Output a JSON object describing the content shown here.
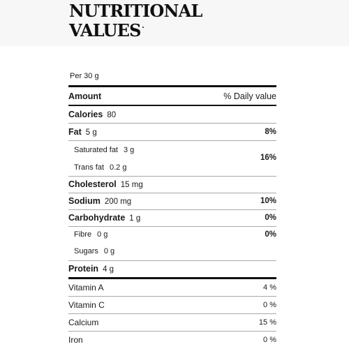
{
  "title": {
    "line1": "NUTRITIONAL",
    "line2": "VALUES"
  },
  "serving": "Per 30 g",
  "header": {
    "left": "Amount",
    "right": "% Daily value"
  },
  "rows": {
    "calories": {
      "name": "Calories",
      "qty": "80",
      "pct": ""
    },
    "fat": {
      "name": "Fat",
      "qty": "5 g",
      "pct": "8%"
    },
    "saturated_fat": {
      "name": "Saturated fat",
      "qty": "3 g"
    },
    "trans_fat": {
      "name": "Trans fat",
      "qty": "0.2 g"
    },
    "sat_trans_pct": "16%",
    "cholesterol": {
      "name": "Cholesterol",
      "qty": "15 mg",
      "pct": ""
    },
    "sodium": {
      "name": "Sodium",
      "qty": "200 mg",
      "pct": "10%"
    },
    "carbohydrate": {
      "name": "Carbohydrate",
      "qty": "1 g",
      "pct": "0%"
    },
    "fibre": {
      "name": "Fibre",
      "qty": "0 g"
    },
    "sugars": {
      "name": "Sugars",
      "qty": "0 g"
    },
    "fibre_sugars_pct": "0%",
    "protein": {
      "name": "Protein",
      "qty": "4 g",
      "pct": ""
    }
  },
  "vitamins": {
    "vitamin_a": {
      "name": "Vitamin A",
      "pct": "4 %"
    },
    "vitamin_c": {
      "name": "Vitamin C",
      "pct": "0 %"
    },
    "calcium": {
      "name": "Calcium",
      "pct": "15 %"
    },
    "iron": {
      "name": "Iron",
      "pct": "0 %"
    }
  }
}
